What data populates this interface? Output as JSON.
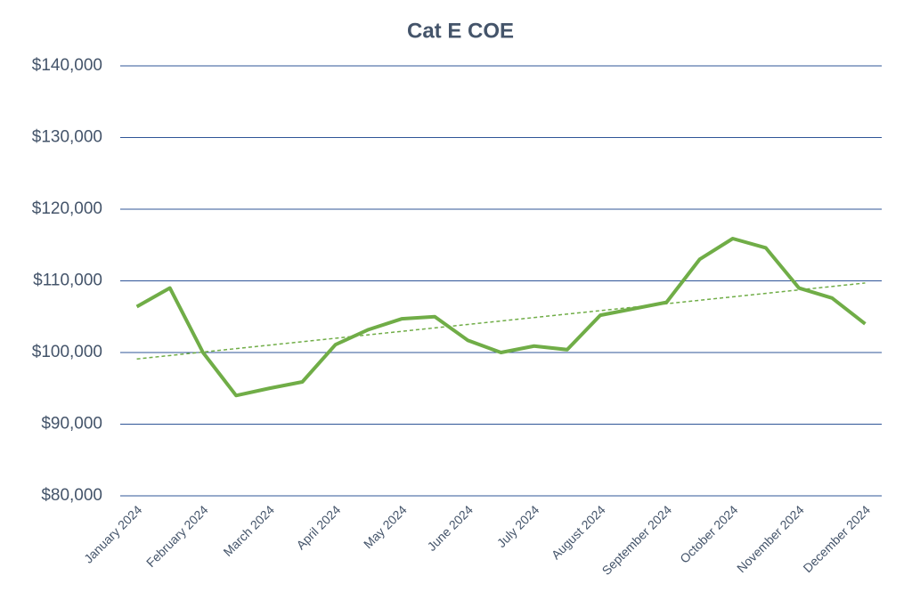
{
  "chart_data": {
    "type": "line",
    "title": "Cat E COE",
    "categories": [
      "January 2024",
      null,
      "February 2024",
      null,
      "March 2024",
      null,
      "April 2024",
      null,
      "May 2024",
      null,
      "June 2024",
      null,
      "July 2024",
      null,
      "August 2024",
      null,
      "September 2024",
      null,
      "October 2024",
      null,
      "November 2024",
      null,
      "December 2024"
    ],
    "values": [
      106400,
      109000,
      100000,
      94000,
      95000,
      95900,
      101100,
      103200,
      104700,
      105000,
      101700,
      100000,
      100900,
      100400,
      105200,
      106100,
      107000,
      113000,
      115900,
      114600,
      109000,
      107600,
      104000
    ],
    "color": "#70ad47",
    "trendline": [
      99100,
      109700
    ],
    "ylim": [
      80000,
      140000
    ],
    "yticks": [
      {
        "value": 80000,
        "label": "$80,000"
      },
      {
        "value": 90000,
        "label": "$90,000"
      },
      {
        "value": 100000,
        "label": "$100,000"
      },
      {
        "value": 110000,
        "label": "$110,000"
      },
      {
        "value": 120000,
        "label": "$120,000"
      },
      {
        "value": 130000,
        "label": "$130,000"
      },
      {
        "value": 140000,
        "label": "$140,000"
      }
    ],
    "grid": true
  }
}
